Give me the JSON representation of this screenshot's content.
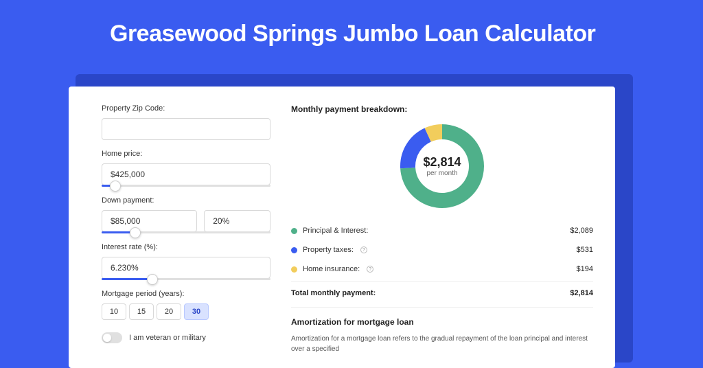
{
  "page": {
    "title": "Greasewood Springs Jumbo Loan Calculator",
    "bg_color": "#3a5cf0",
    "shadow_color": "#2a46c8"
  },
  "form": {
    "zip": {
      "label": "Property Zip Code:",
      "value": ""
    },
    "home_price": {
      "label": "Home price:",
      "value": "$425,000",
      "slider_pct": 8
    },
    "down_payment": {
      "label": "Down payment:",
      "value": "$85,000",
      "pct_value": "20%",
      "slider_pct": 20
    },
    "interest": {
      "label": "Interest rate (%):",
      "value": "6.230%",
      "slider_pct": 30
    },
    "period": {
      "label": "Mortgage period (years):",
      "options": [
        "10",
        "15",
        "20",
        "30"
      ],
      "selected": "30"
    },
    "veteran": {
      "label": "I am veteran or military",
      "checked": false
    }
  },
  "breakdown": {
    "title": "Monthly payment breakdown:",
    "center_amount": "$2,814",
    "center_sub": "per month",
    "items": [
      {
        "label": "Principal & Interest:",
        "value": "$2,089",
        "color": "#4fb08a",
        "info": false,
        "pct": 74
      },
      {
        "label": "Property taxes:",
        "value": "$531",
        "color": "#3a5cf0",
        "info": true,
        "pct": 19
      },
      {
        "label": "Home insurance:",
        "value": "$194",
        "color": "#f2cd5c",
        "info": true,
        "pct": 7
      }
    ],
    "total_label": "Total monthly payment:",
    "total_value": "$2,814"
  },
  "amortization": {
    "title": "Amortization for mortgage loan",
    "text": "Amortization for a mortgage loan refers to the gradual repayment of the loan principal and interest over a specified"
  },
  "donut": {
    "radius": 50,
    "stroke": 22
  }
}
